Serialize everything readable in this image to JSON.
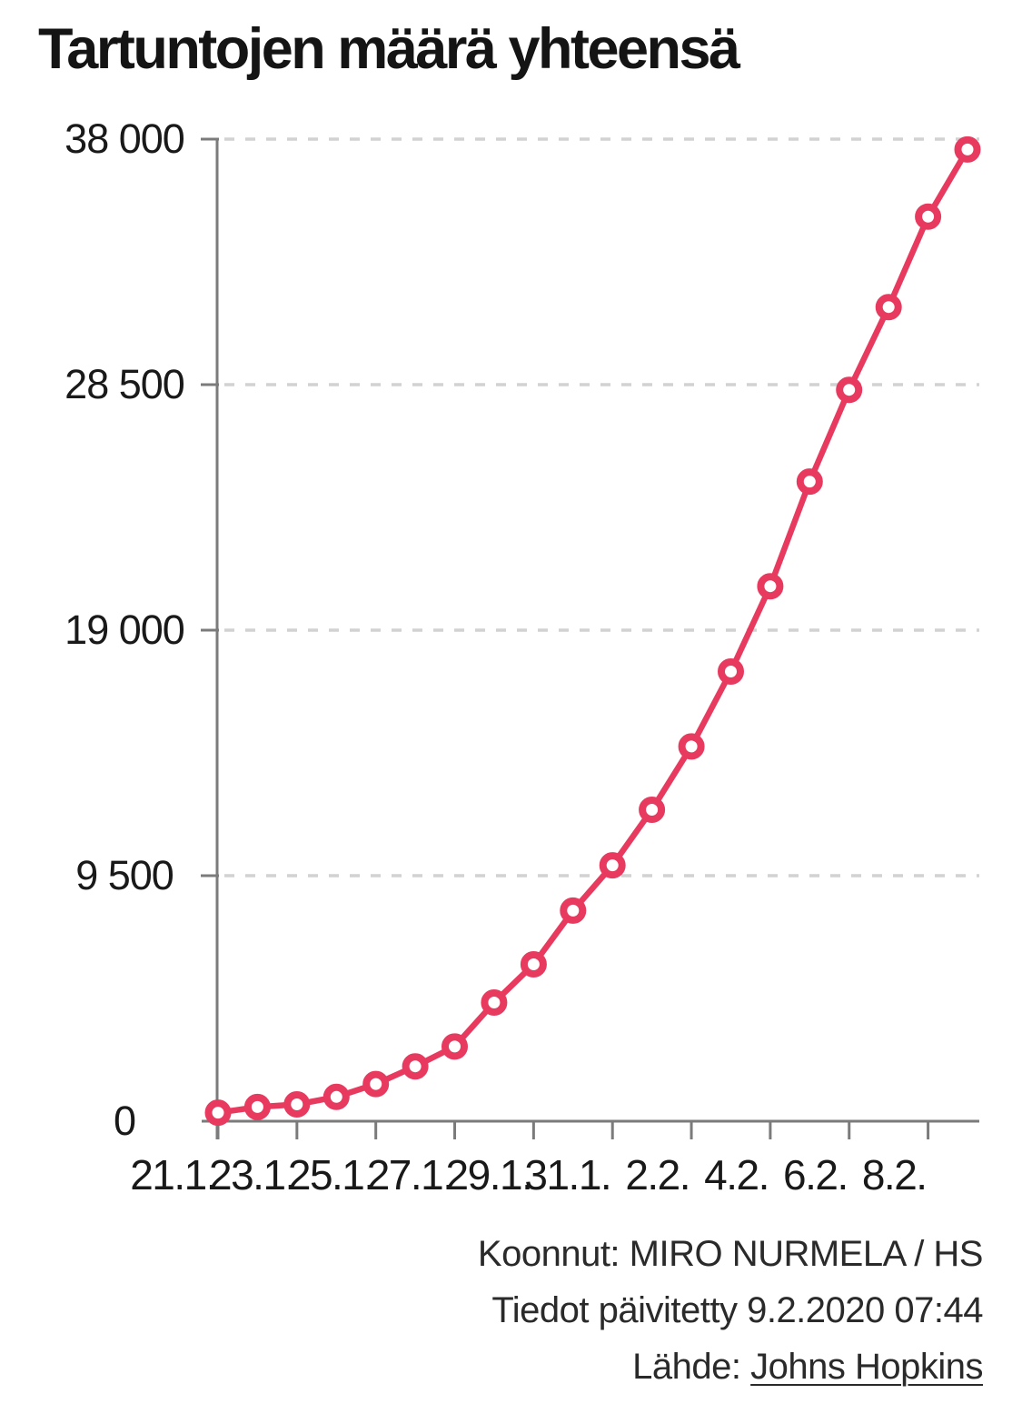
{
  "title": "Tartuntojen määrä yhteensä",
  "chart_data": {
    "type": "line",
    "title": "Tartuntojen määrä yhteensä",
    "x": [
      "21.1.",
      "22.1.",
      "23.1.",
      "24.1.",
      "25.1.",
      "26.1.",
      "27.1.",
      "28.1.",
      "29.1.",
      "30.1.",
      "31.1.",
      "1.2.",
      "2.2.",
      "3.2.",
      "4.2.",
      "5.2.",
      "6.2.",
      "7.2.",
      "8.2.",
      "9.2."
    ],
    "values": [
      330,
      550,
      650,
      940,
      1440,
      2120,
      2890,
      4590,
      6070,
      8150,
      9900,
      12050,
      14500,
      17400,
      20700,
      24750,
      28300,
      31500,
      35000,
      37600
    ],
    "ylim": [
      0,
      38000
    ],
    "yticks": [
      {
        "label": "38 000",
        "value": 38000
      },
      {
        "label": "28 500",
        "value": 28500
      },
      {
        "label": "19 000",
        "value": 19000
      },
      {
        "label": "9 500",
        "value": 9500
      },
      {
        "label": "0",
        "value": 0
      }
    ],
    "xtick_labels": [
      "21.1.",
      "23.1.",
      "25.1.",
      "27.1.",
      "29.1.",
      "31.1.",
      "2.2.",
      "4.2.",
      "6.2.",
      "8.2."
    ],
    "xtick_indices": [
      0,
      2,
      4,
      6,
      8,
      10,
      12,
      14,
      16,
      18
    ],
    "grid": "horizontal-dashed",
    "legend": "none",
    "marker": "circle-open",
    "colors": {
      "line": "#e73a5e",
      "marker_fill": "#ffffff",
      "axis": "#7b7b7b",
      "gridline": "#d2d2d2",
      "tick_text": "#191919"
    }
  },
  "footer": {
    "credit": "Koonnut: MIRO NURMELA / HS",
    "updated": "Tiedot päivitetty 9.2.2020 07:44",
    "source_label": "Lähde: ",
    "source_link": "Johns Hopkins"
  }
}
